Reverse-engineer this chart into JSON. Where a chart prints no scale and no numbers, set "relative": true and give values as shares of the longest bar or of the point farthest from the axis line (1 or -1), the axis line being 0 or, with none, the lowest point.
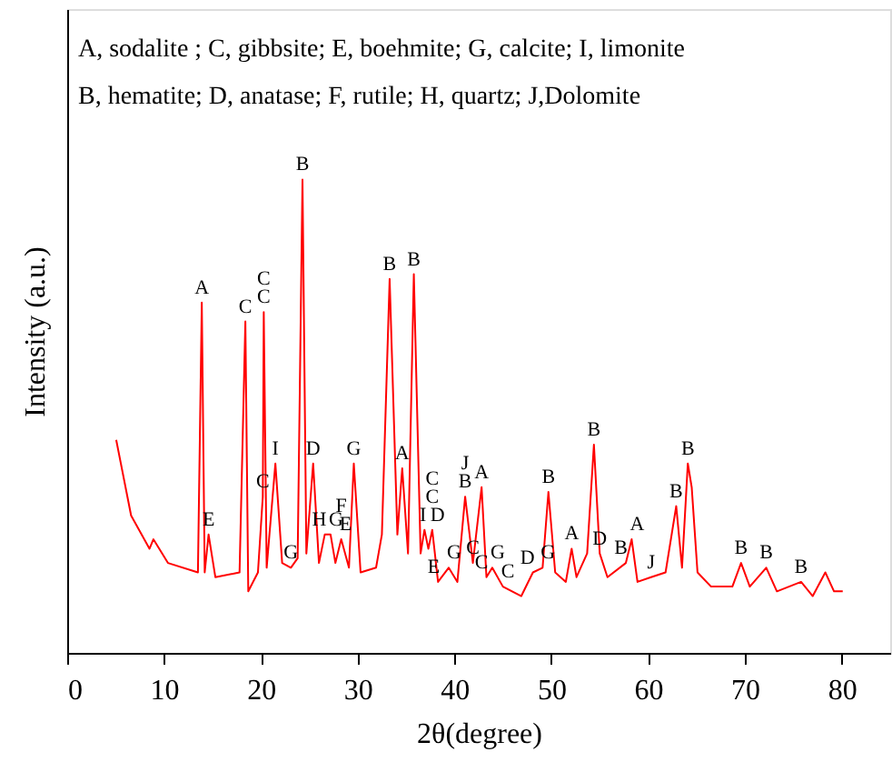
{
  "chart_data": {
    "type": "line",
    "xlabel": "2θ(degree)",
    "ylabel": "Intensity (a.u.)",
    "relative": true,
    "tick_labels": "x",
    "grid": false,
    "marker": "none",
    "line_style": "solid",
    "xlim": [
      0,
      85
    ],
    "xticks": [
      0,
      10,
      20,
      30,
      40,
      50,
      60,
      70,
      80
    ],
    "series": [
      {
        "color": "#ff0000",
        "x": [
          5.06,
          6.6,
          8.5,
          8.9,
          10.4,
          13.5,
          13.9,
          14.2,
          14.6,
          15.3,
          17.8,
          18.4,
          18.7,
          19.7,
          20.2,
          20.3,
          20.6,
          21.5,
          22.2,
          23.1,
          23.8,
          24.3,
          24.7,
          25.4,
          26.0,
          26.6,
          27.2,
          27.7,
          28.3,
          29.1,
          29.6,
          30.3,
          31.9,
          32.5,
          33.3,
          34.1,
          34.6,
          35.2,
          35.8,
          36.5,
          36.9,
          37.3,
          37.7,
          38.3,
          39.4,
          40.3,
          41.1,
          41.9,
          42.8,
          43.3,
          43.9,
          45.0,
          46.9,
          48.1,
          49.1,
          49.7,
          50.4,
          51.5,
          52.1,
          52.6,
          53.7,
          54.4,
          55.0,
          55.8,
          57.7,
          58.3,
          58.9,
          60.3,
          61.8,
          62.9,
          63.5,
          64.1,
          64.5,
          65.1,
          66.5,
          68.7,
          69.6,
          70.5,
          72.2,
          73.3,
          75.8,
          77.0,
          78.3,
          79.2,
          80.1
        ],
        "values": [
          0.45,
          0.29,
          0.22,
          0.24,
          0.19,
          0.17,
          0.74,
          0.17,
          0.25,
          0.16,
          0.17,
          0.7,
          0.13,
          0.17,
          0.33,
          0.72,
          0.18,
          0.4,
          0.19,
          0.18,
          0.2,
          1,
          0.21,
          0.4,
          0.19,
          0.25,
          0.25,
          0.19,
          0.24,
          0.18,
          0.4,
          0.17,
          0.18,
          0.25,
          0.79,
          0.25,
          0.39,
          0.21,
          0.8,
          0.21,
          0.26,
          0.22,
          0.26,
          0.15,
          0.18,
          0.15,
          0.33,
          0.19,
          0.35,
          0.16,
          0.18,
          0.14,
          0.12,
          0.17,
          0.18,
          0.34,
          0.17,
          0.15,
          0.22,
          0.16,
          0.21,
          0.44,
          0.21,
          0.16,
          0.19,
          0.24,
          0.15,
          0.16,
          0.17,
          0.31,
          0.18,
          0.4,
          0.35,
          0.17,
          0.14,
          0.14,
          0.19,
          0.14,
          0.18,
          0.13,
          0.15,
          0.12,
          0.17,
          0.13,
          0.13
        ]
      }
    ],
    "annotations": [
      "A, sodalite ; C, gibbsite; E, boehmite; G, calcite;  I, limonite",
      "B, hematite; D, anatase;  F, rutile;       H, quartz;  J,Dolomite",
      {
        "text": "A",
        "x": 13.9,
        "y": 0.74
      },
      {
        "text": "E",
        "x": 14.6,
        "y": 0.25
      },
      {
        "text": "C",
        "x": 18.4,
        "y": 0.7
      },
      {
        "text": "C",
        "x": 20.3,
        "y": 0.72
      },
      {
        "text": "C",
        "x": 20.3,
        "y": 0.72
      },
      {
        "text": "I",
        "x": 21.5,
        "y": 0.4
      },
      {
        "text": "C",
        "x": 20.2,
        "y": 0.33
      },
      {
        "text": "B",
        "x": 24.3,
        "y": 1
      },
      {
        "text": "D",
        "x": 25.4,
        "y": 0.4
      },
      {
        "text": "G",
        "x": 23.1,
        "y": 0.18
      },
      {
        "text": "H",
        "x": 26.6,
        "y": 0.25
      },
      {
        "text": "G",
        "x": 27.2,
        "y": 0.25
      },
      {
        "text": "F",
        "x": 28.3,
        "y": 0.24
      },
      {
        "text": "E",
        "x": 28.3,
        "y": 0.24
      },
      {
        "text": "G",
        "x": 29.6,
        "y": 0.4
      },
      {
        "text": "B",
        "x": 33.3,
        "y": 0.79
      },
      {
        "text": "A",
        "x": 34.6,
        "y": 0.39
      },
      {
        "text": "B",
        "x": 35.8,
        "y": 0.8
      },
      {
        "text": "I",
        "x": 36.9,
        "y": 0.26
      },
      {
        "text": "C",
        "x": 37.7,
        "y": 0.26
      },
      {
        "text": "C",
        "x": 37.7,
        "y": 0.26
      },
      {
        "text": "D",
        "x": 37.7,
        "y": 0.26
      },
      {
        "text": "E",
        "x": 38.3,
        "y": 0.15
      },
      {
        "text": "G",
        "x": 39.4,
        "y": 0.18
      },
      {
        "text": "J",
        "x": 41.1,
        "y": 0.33
      },
      {
        "text": "B",
        "x": 41.1,
        "y": 0.33
      },
      {
        "text": "A",
        "x": 42.8,
        "y": 0.35
      },
      {
        "text": "C",
        "x": 41.9,
        "y": 0.19
      },
      {
        "text": "G",
        "x": 43.9,
        "y": 0.18
      },
      {
        "text": "C",
        "x": 43.3,
        "y": 0.16
      },
      {
        "text": "C",
        "x": 45.0,
        "y": 0.14
      },
      {
        "text": "D",
        "x": 48.1,
        "y": 0.17
      },
      {
        "text": "G",
        "x": 49.1,
        "y": 0.18
      },
      {
        "text": "B",
        "x": 49.7,
        "y": 0.34
      },
      {
        "text": "A",
        "x": 52.1,
        "y": 0.22
      },
      {
        "text": "B",
        "x": 54.4,
        "y": 0.44
      },
      {
        "text": "D",
        "x": 55.0,
        "y": 0.21
      },
      {
        "text": "B",
        "x": 57.7,
        "y": 0.19
      },
      {
        "text": "A",
        "x": 58.3,
        "y": 0.24
      },
      {
        "text": "J",
        "x": 60.3,
        "y": 0.16
      },
      {
        "text": "B",
        "x": 62.9,
        "y": 0.31
      },
      {
        "text": "B",
        "x": 64.1,
        "y": 0.4
      },
      {
        "text": "B",
        "x": 69.6,
        "y": 0.19
      },
      {
        "text": "B",
        "x": 72.2,
        "y": 0.18
      },
      {
        "text": "B",
        "x": 75.8,
        "y": 0.15
      }
    ]
  }
}
